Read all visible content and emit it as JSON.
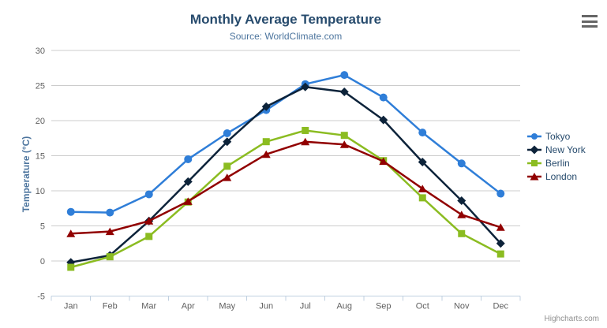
{
  "chart_data": {
    "type": "line",
    "title": "Monthly Average Temperature",
    "subtitle": "Source: WorldClimate.com",
    "xlabel": "",
    "ylabel": "Temperature (°C)",
    "categories": [
      "Jan",
      "Feb",
      "Mar",
      "Apr",
      "May",
      "Jun",
      "Jul",
      "Aug",
      "Sep",
      "Oct",
      "Nov",
      "Dec"
    ],
    "ylim": [
      -5,
      30
    ],
    "y_ticks": [
      -5,
      0,
      5,
      10,
      15,
      20,
      25,
      30
    ],
    "grid": "horizontal",
    "legend_position": "right",
    "series": [
      {
        "name": "Tokyo",
        "marker": "circle",
        "color": "#2f7ed8",
        "values": [
          7.0,
          6.9,
          9.5,
          14.5,
          18.2,
          21.5,
          25.2,
          26.5,
          23.3,
          18.3,
          13.9,
          9.6
        ]
      },
      {
        "name": "New York",
        "marker": "diamond",
        "color": "#0d233a",
        "values": [
          -0.2,
          0.8,
          5.7,
          11.3,
          17.0,
          22.0,
          24.8,
          24.1,
          20.1,
          14.1,
          8.6,
          2.5
        ]
      },
      {
        "name": "Berlin",
        "marker": "square",
        "color": "#8bbc21",
        "values": [
          -0.9,
          0.6,
          3.5,
          8.4,
          13.5,
          17.0,
          18.6,
          17.9,
          14.3,
          9.0,
          3.9,
          1.0
        ]
      },
      {
        "name": "London",
        "marker": "triangle",
        "color": "#910000",
        "values": [
          3.9,
          4.2,
          5.7,
          8.5,
          11.9,
          15.2,
          17.0,
          16.6,
          14.2,
          10.3,
          6.6,
          4.8
        ]
      }
    ],
    "credits": "Highcharts.com"
  },
  "colors": {
    "title": "#274b6d",
    "subtitle": "#4d759e",
    "axis_labels": "#606060",
    "gridline": "#cccccc",
    "axis_line": "#c0d0e0",
    "legend_text": "#274b6d",
    "credits_text": "#909090",
    "menu_icon": "#666666"
  }
}
